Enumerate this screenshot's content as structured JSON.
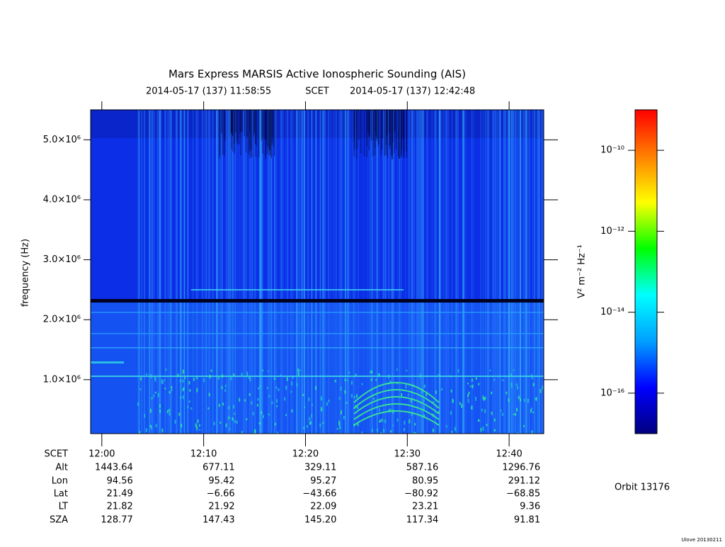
{
  "chart_data": {
    "type": "spectrogram",
    "title": "Mars Express MARSIS Active Ionospheric Sounding (AIS)",
    "start_time": "2014-05-17 (137) 11:58:55",
    "time_system": "SCET",
    "end_time": "2014-05-17 (137) 12:42:48",
    "ylabel": "frequency (Hz)",
    "xlim": [
      718.9,
      763.4
    ],
    "xticks": [
      {
        "value": 720,
        "label": "12:00"
      },
      {
        "value": 730,
        "label": "12:10"
      },
      {
        "value": 740,
        "label": "12:20"
      },
      {
        "value": 750,
        "label": "12:30"
      },
      {
        "value": 760,
        "label": "12:40"
      }
    ],
    "ylim": [
      100000,
      5500000
    ],
    "yticks": [
      {
        "value": 1000000,
        "label": "1.0×10⁶"
      },
      {
        "value": 2000000,
        "label": "2.0×10⁶"
      },
      {
        "value": 3000000,
        "label": "3.0×10⁶"
      },
      {
        "value": 4000000,
        "label": "4.0×10⁶"
      },
      {
        "value": 5000000,
        "label": "5.0×10⁶"
      }
    ],
    "colorbar": {
      "label": "V² m⁻² Hz⁻¹",
      "scale": "log",
      "zlim": [
        1e-17,
        1e-09
      ],
      "zticks": [
        {
          "value": 1e-10,
          "label": "10⁻¹⁰"
        },
        {
          "value": 1e-12,
          "label": "10⁻¹²"
        },
        {
          "value": 1e-14,
          "label": "10⁻¹⁴"
        },
        {
          "value": 1e-16,
          "label": "10⁻¹⁶"
        }
      ],
      "colors": [
        "#00007f",
        "#0000ff",
        "#00a0ff",
        "#00ffff",
        "#00ff00",
        "#ffff00",
        "#ff8000",
        "#ff0000"
      ]
    }
  },
  "ephemeris": {
    "labels": [
      "SCET",
      "Alt",
      "Lon",
      "Lat",
      "LT",
      "SZA"
    ],
    "rows": [
      [
        "1443.64",
        "677.11",
        "329.11",
        "587.16",
        "1296.76"
      ],
      [
        "94.56",
        "95.42",
        "95.27",
        "80.95",
        "291.12"
      ],
      [
        "21.49",
        "−6.66",
        "−43.66",
        "−80.92",
        "−68.85"
      ],
      [
        "21.82",
        "21.92",
        "22.09",
        "23.21",
        "9.36"
      ],
      [
        "128.77",
        "147.43",
        "145.20",
        "117.34",
        "91.81"
      ]
    ]
  },
  "orbit": "Orbit 13176",
  "footer": "Ulove 20130211"
}
